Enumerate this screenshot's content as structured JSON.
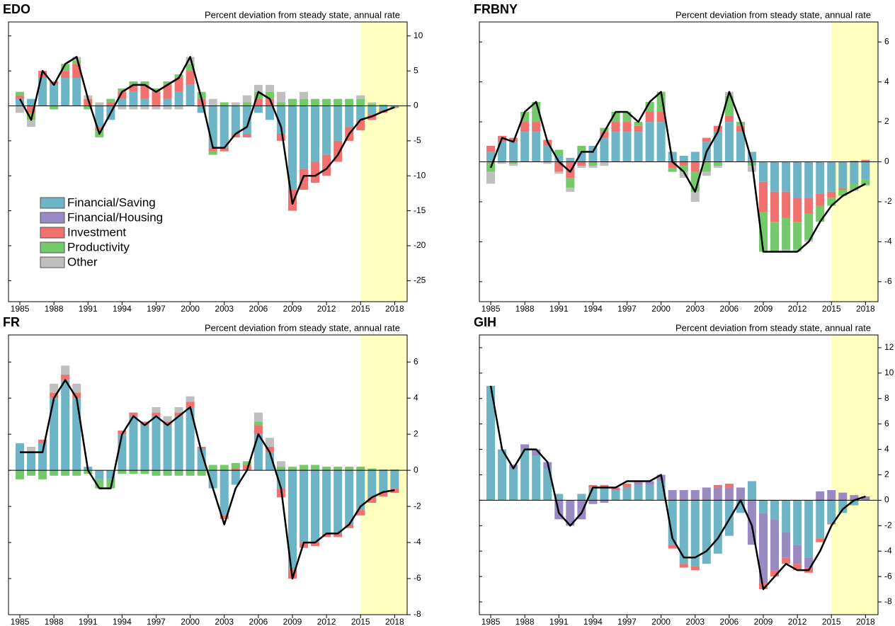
{
  "chart_data": [
    {
      "type": "bar",
      "title": "EDO",
      "subtitle": "Percent deviation from steady state, annual rate",
      "x": [
        1985,
        1986,
        1987,
        1988,
        1989,
        1990,
        1991,
        1992,
        1993,
        1994,
        1995,
        1996,
        1997,
        1998,
        1999,
        2000,
        2001,
        2002,
        2003,
        2004,
        2005,
        2006,
        2007,
        2008,
        2009,
        2010,
        2011,
        2012,
        2013,
        2014,
        2015,
        2016,
        2017,
        2018
      ],
      "xlim": [
        1984,
        2019.1
      ],
      "xticks": [
        1985,
        1988,
        1991,
        1994,
        1997,
        2000,
        2003,
        2006,
        2009,
        2012,
        2015,
        2018
      ],
      "ylim": [
        -28,
        12
      ],
      "yticks": [
        -25,
        -20,
        -15,
        -10,
        -5,
        0,
        5,
        10
      ],
      "shade": [
        2015,
        2019.1
      ],
      "shade_color": "#ffffc0",
      "legend": "lower left",
      "series": [
        {
          "name": "Financial/Saving",
          "color": "#6db5c6",
          "values": [
            1,
            1,
            4,
            3,
            4,
            4,
            0,
            -3,
            -2,
            1,
            2,
            1,
            0,
            1,
            2,
            3,
            -1,
            -6,
            -6,
            -4,
            -4,
            -1,
            -2,
            -4,
            -12,
            -9,
            -8,
            -7,
            -5,
            -3,
            -2,
            -1.2,
            -0.6,
            -0.2
          ]
        },
        {
          "name": "Financial/Housing",
          "color": "#9a8ac4",
          "values": [
            0,
            0,
            0,
            0,
            0,
            0,
            0,
            0,
            0,
            0,
            0,
            0,
            0,
            0,
            0,
            0,
            0,
            0,
            0,
            0,
            0,
            0,
            0,
            0,
            0,
            0,
            0,
            0,
            0,
            0,
            0,
            0,
            0,
            0
          ]
        },
        {
          "name": "Investment",
          "color": "#f0716d",
          "values": [
            0.5,
            -1,
            1,
            0.5,
            1,
            2,
            1,
            -0.5,
            0.5,
            1,
            1,
            2,
            2,
            2,
            2,
            2,
            1,
            -0.5,
            -0.5,
            -0.5,
            -0.5,
            1,
            1,
            -1,
            -3,
            -3,
            -3,
            -3,
            -3,
            -2,
            -1.5,
            -0.8,
            -0.4,
            -0.1
          ]
        },
        {
          "name": "Productivity",
          "color": "#74c96b",
          "values": [
            0.5,
            -1,
            0,
            -0.5,
            1,
            0.5,
            -0.5,
            -1,
            0.5,
            0.5,
            0.5,
            0.5,
            0.5,
            0.5,
            0.5,
            1,
            1,
            -0.5,
            0.5,
            0,
            0.5,
            1,
            1,
            0.5,
            1,
            1,
            1,
            1,
            1,
            1,
            1,
            0.3,
            0.15,
            0.05
          ]
        },
        {
          "name": "Other",
          "color": "#bfbfbf",
          "values": [
            -1,
            -1,
            0,
            0,
            0,
            0.5,
            0.5,
            0.5,
            0,
            -0.5,
            -0.5,
            -0.5,
            -0.5,
            -0.5,
            -0.5,
            1,
            0,
            1,
            0,
            0.5,
            1,
            1,
            1,
            1.5,
            0,
            1,
            0,
            0,
            0,
            0,
            0.5,
            0.2,
            0.05,
            0.05
          ]
        }
      ],
      "total": {
        "color": "#000000",
        "values": [
          1,
          -2,
          5,
          3,
          6,
          7,
          1,
          -4,
          -1,
          2,
          3,
          3,
          2,
          3,
          4,
          7,
          1,
          -6,
          -6,
          -4,
          -3,
          2,
          1,
          -3,
          -14,
          -10,
          -10,
          -9,
          -7,
          -4,
          -2,
          -1.5,
          -0.8,
          -0.2
        ]
      }
    },
    {
      "type": "bar",
      "title": "FRBNY",
      "subtitle": "Percent deviation from steady state, annual rate",
      "x": [
        1985,
        1986,
        1987,
        1988,
        1989,
        1990,
        1991,
        1992,
        1993,
        1994,
        1995,
        1996,
        1997,
        1998,
        1999,
        2000,
        2001,
        2002,
        2003,
        2004,
        2005,
        2006,
        2007,
        2008,
        2009,
        2010,
        2011,
        2012,
        2013,
        2014,
        2015,
        2016,
        2017,
        2018
      ],
      "xlim": [
        1984,
        2019.1
      ],
      "xticks": [
        1985,
        1988,
        1991,
        1994,
        1997,
        2000,
        2003,
        2006,
        2009,
        2012,
        2015,
        2018
      ],
      "ylim": [
        -7,
        7
      ],
      "yticks": [
        -6,
        -4,
        -2,
        0,
        2,
        4,
        6
      ],
      "shade": [
        2015,
        2019.1
      ],
      "shade_color": "#ffffc0",
      "series": [
        {
          "name": "Financial/Saving",
          "color": "#6db5c6",
          "values": [
            0.5,
            1,
            1,
            1.5,
            1.5,
            0.8,
            0.3,
            0.2,
            0.5,
            0.8,
            1.2,
            1.5,
            1.5,
            1.5,
            2,
            2,
            0.5,
            0.3,
            0.5,
            1,
            1.5,
            2,
            1.5,
            0.5,
            -1,
            -1.5,
            -1.5,
            -1.8,
            -1.8,
            -1.6,
            -1.5,
            -1.3,
            -1.1,
            -0.9
          ]
        },
        {
          "name": "Investment",
          "color": "#f0716d",
          "values": [
            0.3,
            0.3,
            0.2,
            0.5,
            0.5,
            0.3,
            -0.5,
            -0.8,
            -0.2,
            0,
            0.3,
            0.5,
            0.5,
            0.3,
            0.5,
            0.5,
            -0.3,
            -0.2,
            -0.5,
            0.2,
            0.3,
            0.3,
            0.3,
            0,
            -1.5,
            -1.5,
            -1.3,
            -1.2,
            -0.8,
            -0.6,
            -0.3,
            -0.1,
            0.05,
            0.1
          ]
        },
        {
          "name": "Productivity",
          "color": "#74c96b",
          "values": [
            -0.5,
            0,
            -0.1,
            0.5,
            1,
            0,
            0.3,
            -0.5,
            0.3,
            -0.2,
            0.2,
            0.5,
            0.5,
            0.2,
            0.5,
            1,
            -0.2,
            -0.3,
            -1,
            -0.5,
            -0.2,
            1,
            0.2,
            -0.2,
            -2,
            -1.5,
            -1.6,
            -1.4,
            -1.3,
            -0.8,
            -0.4,
            -0.3,
            -0.3,
            -0.25
          ]
        },
        {
          "name": "Other",
          "color": "#bfbfbf",
          "values": [
            -0.6,
            -0.1,
            -0.1,
            0,
            0,
            -0.1,
            -0.1,
            -0.2,
            -0.1,
            -0.1,
            -0.2,
            0,
            0,
            0,
            0,
            0,
            0,
            -0.3,
            -0.5,
            -0.2,
            -0.1,
            0.2,
            0,
            -0.3,
            0,
            0,
            -0.1,
            -0.1,
            -0.1,
            0,
            0,
            0,
            -0.05,
            -0.05
          ]
        }
      ],
      "total": {
        "color": "#000000",
        "values": [
          -0.3,
          1.2,
          1,
          2.5,
          3,
          1,
          0,
          -0.5,
          0.5,
          0.5,
          1.5,
          2.5,
          2.5,
          2,
          3,
          3.5,
          0,
          -0.5,
          -1.5,
          0.5,
          1.5,
          3.5,
          2,
          0,
          -4.5,
          -4.5,
          -4.5,
          -4.5,
          -4,
          -3,
          -2.2,
          -1.7,
          -1.4,
          -1.1
        ]
      }
    },
    {
      "type": "bar",
      "title": "FR",
      "subtitle": "Percent deviation from steady state, annual rate",
      "x": [
        1985,
        1986,
        1987,
        1988,
        1989,
        1990,
        1991,
        1992,
        1993,
        1994,
        1995,
        1996,
        1997,
        1998,
        1999,
        2000,
        2001,
        2002,
        2003,
        2004,
        2005,
        2006,
        2007,
        2008,
        2009,
        2010,
        2011,
        2012,
        2013,
        2014,
        2015,
        2016,
        2017,
        2018
      ],
      "xlim": [
        1984,
        2019.1
      ],
      "xticks": [
        1985,
        1988,
        1991,
        1994,
        1997,
        2000,
        2003,
        2006,
        2009,
        2012,
        2015,
        2018
      ],
      "ylim": [
        -8,
        7.5
      ],
      "yticks": [
        -8,
        -6,
        -4,
        -2,
        0,
        2,
        4,
        6
      ],
      "shade": [
        2015,
        2019.1
      ],
      "shade_color": "#ffffc0",
      "series": [
        {
          "name": "Financial/Saving",
          "color": "#6db5c6",
          "values": [
            1.5,
            1,
            1.5,
            4,
            5,
            4,
            0.2,
            -0.5,
            -0.5,
            2,
            3,
            2.5,
            3,
            2.5,
            3,
            3.5,
            1.2,
            -1,
            -2.5,
            -0.8,
            0,
            2,
            1,
            -1,
            -5.5,
            -4,
            -4,
            -3.5,
            -3.5,
            -3,
            -2.2,
            -1.5,
            -1.2,
            -1
          ]
        },
        {
          "name": "Investment",
          "color": "#f0716d",
          "values": [
            0,
            0,
            0.2,
            0.3,
            0.3,
            0.3,
            0,
            0,
            0,
            0.2,
            0.2,
            0.2,
            0.2,
            0.2,
            0.2,
            0.3,
            0.1,
            0,
            -0.2,
            0.1,
            0.3,
            0.5,
            0.3,
            -0.5,
            -0.5,
            -0.3,
            -0.2,
            -0.2,
            -0.2,
            -0.2,
            -0.3,
            -0.3,
            -0.25,
            -0.25
          ]
        },
        {
          "name": "Productivity",
          "color": "#74c96b",
          "values": [
            -0.5,
            -0.3,
            -0.5,
            -0.3,
            -0.3,
            -0.3,
            -0.2,
            -0.5,
            -0.5,
            -0.2,
            -0.2,
            -0.2,
            -0.3,
            -0.3,
            -0.3,
            -0.3,
            -0.3,
            0.3,
            0.3,
            0.3,
            0.2,
            0.2,
            0,
            0.2,
            0.2,
            0.3,
            0.3,
            0.2,
            0.2,
            0.2,
            0.2,
            0.1,
            0.05,
            0.05
          ]
        },
        {
          "name": "Other",
          "color": "#bfbfbf",
          "values": [
            0,
            0.3,
            0,
            0.5,
            0.5,
            0.5,
            0,
            0,
            0,
            0,
            0,
            0,
            0.3,
            0.3,
            0.3,
            0.3,
            0,
            0,
            0,
            0,
            0,
            0.5,
            0.5,
            0.3,
            0,
            0,
            0,
            0,
            0,
            0,
            0,
            0,
            0,
            0
          ]
        }
      ],
      "total": {
        "color": "#000000",
        "values": [
          1,
          1,
          1,
          4,
          5,
          4,
          0,
          -1,
          -1,
          2,
          3,
          2.5,
          3,
          2.5,
          3,
          3.5,
          1,
          -1,
          -3,
          -1,
          0,
          2,
          1,
          -1,
          -6,
          -4,
          -4,
          -3.5,
          -3.5,
          -3,
          -2,
          -1.5,
          -1.2,
          -1.1
        ]
      }
    },
    {
      "type": "bar",
      "title": "GIH",
      "subtitle": "Percent deviation from steady state, annual rate",
      "x": [
        1985,
        1986,
        1987,
        1988,
        1989,
        1990,
        1991,
        1992,
        1993,
        1994,
        1995,
        1996,
        1997,
        1998,
        1999,
        2000,
        2001,
        2002,
        2003,
        2004,
        2005,
        2006,
        2007,
        2008,
        2009,
        2010,
        2011,
        2012,
        2013,
        2014,
        2015,
        2016,
        2017,
        2018
      ],
      "xlim": [
        1984,
        2019.1
      ],
      "xticks": [
        1985,
        1988,
        1991,
        1994,
        1997,
        2000,
        2003,
        2006,
        2009,
        2012,
        2015,
        2018
      ],
      "ylim": [
        -9,
        13
      ],
      "yticks": [
        -8,
        -6,
        -4,
        -2,
        0,
        2,
        4,
        6,
        8,
        10,
        12
      ],
      "shade": [
        2015,
        2019.1
      ],
      "shade_color": "#ffffc0",
      "series": [
        {
          "name": "Financial/Saving",
          "color": "#6db5c6",
          "values": [
            9,
            4,
            2.5,
            4,
            3.5,
            2.5,
            0.5,
            0,
            0.5,
            1,
            1,
            0.8,
            1,
            1.2,
            1.2,
            1.5,
            -3.5,
            -5,
            -5.2,
            -5,
            -4.2,
            -2.8,
            -1,
            1.5,
            -1,
            -1.5,
            -2.5,
            -3.5,
            -4.5,
            -3,
            -1.8,
            -1,
            -0.4,
            0
          ]
        },
        {
          "name": "Financial/Housing",
          "color": "#9a8ac4",
          "values": [
            0,
            0,
            0.3,
            0.4,
            0.5,
            0.5,
            -1.5,
            -2,
            -1.5,
            -0.3,
            -0.2,
            0,
            0,
            0.2,
            0.3,
            0.5,
            0.8,
            0.8,
            0.8,
            1,
            1,
            1,
            1,
            -3.5,
            -5.5,
            -4,
            -2,
            -1.5,
            -0.8,
            0.7,
            0.8,
            0.6,
            0.4,
            0.3
          ]
        },
        {
          "name": "Investment",
          "color": "#f0716d",
          "values": [
            0,
            0,
            0,
            0,
            0,
            0,
            0,
            0,
            0,
            0.2,
            0.2,
            0.2,
            0.3,
            0.1,
            0,
            0,
            -0.3,
            -0.3,
            -0.3,
            0,
            0.2,
            0.3,
            0,
            0,
            -0.5,
            -0.5,
            -0.5,
            -0.5,
            -0.4,
            -0.3,
            -0.1,
            0,
            0,
            0
          ]
        }
      ],
      "total": {
        "color": "#000000",
        "values": [
          9,
          4,
          2.5,
          4,
          4,
          3,
          -1,
          -2,
          -1,
          1,
          1,
          1,
          1.5,
          1.5,
          1.5,
          2,
          -3,
          -4.5,
          -4.5,
          -4,
          -3,
          -1.5,
          0,
          -2,
          -7,
          -6,
          -5,
          -5.5,
          -5.5,
          -4,
          -2,
          -0.7,
          0,
          0.3
        ]
      }
    }
  ]
}
